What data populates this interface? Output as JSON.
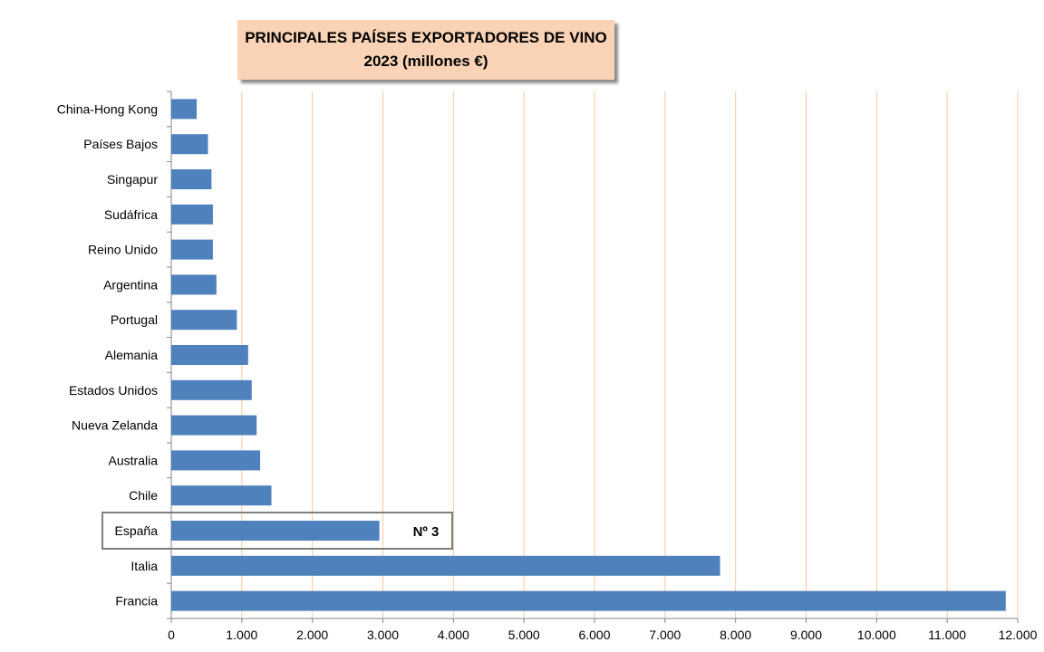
{
  "chart_data": {
    "type": "bar",
    "orientation": "horizontal",
    "title": "PRINCIPALES PAÍSES EXPORTADORES DE VINO",
    "subtitle": "2023 (millones €)",
    "categories": [
      "Francia",
      "Italia",
      "España",
      "Chile",
      "Australia",
      "Nueva Zelanda",
      "Estados Unidos",
      "Alemania",
      "Portugal",
      "Argentina",
      "Reino Unido",
      "Sudáfrica",
      "Singapur",
      "Países Bajos",
      "China-Hong Kong"
    ],
    "values": [
      11830,
      7780,
      2950,
      1420,
      1260,
      1210,
      1140,
      1090,
      930,
      640,
      590,
      590,
      570,
      520,
      360
    ],
    "x_ticks": [
      "0",
      "1.000",
      "2.000",
      "3.000",
      "4.000",
      "5.000",
      "6.000",
      "7.000",
      "8.000",
      "9.000",
      "10.000",
      "11.000",
      "12.000"
    ],
    "xlim": [
      0,
      12000
    ],
    "grid": "vertical",
    "highlight": {
      "category": "España",
      "label": "Nº 3"
    },
    "colors": {
      "bar": "#4f81bd",
      "grid": "#f5c9a0",
      "title_bg": "#fad3b6"
    }
  }
}
